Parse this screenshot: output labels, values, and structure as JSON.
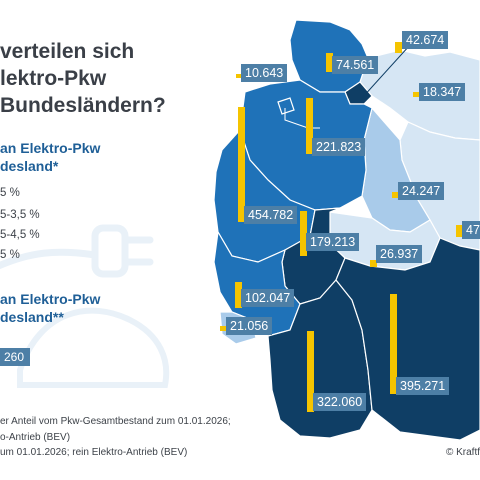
{
  "headline": {
    "line1": "verteilen sich",
    "line2": "lektro-Pkw",
    "line3": "Bundesländern?"
  },
  "legend": {
    "share_title_1": "an Elektro-Pkw",
    "share_title_2": "desland*",
    "share_items": [
      "5 %",
      "5-3,5 %",
      "5-4,5 %",
      "5 %"
    ],
    "count_title_1": "an Elektro-Pkw",
    "count_title_2": "desland**",
    "total_value": "260"
  },
  "footnotes": {
    "line1": "er Anteil vom Pkw-Gesamtbestand zum 01.01.2026;",
    "line2": "o-Antrieb (BEV)",
    "line3": "um 01.01.2026; rein Elektro-Antrieb (BEV)"
  },
  "credit": "© Kraftf",
  "colors": {
    "share_light": "#d6e6f4",
    "share_medium_light": "#a9cbea",
    "share_medium": "#1f72b8",
    "share_dark": "#0f3e65",
    "bar": "#f5c400",
    "label_bg": "#4d7fa6"
  },
  "states": [
    {
      "name": "schleswig-holstein",
      "value": "74.561",
      "bar_value": 74561,
      "share_class": "medium"
    },
    {
      "name": "hamburg",
      "value": "42.674",
      "bar_value": 42674,
      "share_class": "dark"
    },
    {
      "name": "bremen",
      "value": "10.643",
      "bar_value": 10643,
      "share_class": "medium"
    },
    {
      "name": "mecklenburg-vorpommern",
      "value": "18.347",
      "bar_value": 18347,
      "share_class": "light"
    },
    {
      "name": "niedersachsen",
      "value": "221.823",
      "bar_value": 221823,
      "share_class": "medium"
    },
    {
      "name": "nordrhein-westfalen",
      "value": "454.782",
      "bar_value": 454782,
      "share_class": "medium"
    },
    {
      "name": "sachsen-anhalt",
      "value": "24.247",
      "bar_value": 24247,
      "share_class": "light"
    },
    {
      "name": "brandenburg-berlin-partial",
      "value": "47",
      "bar_value": 47000,
      "share_class": "light"
    },
    {
      "name": "hessen",
      "value": "179.213",
      "bar_value": 179213,
      "share_class": "dark"
    },
    {
      "name": "thueringen",
      "value": "26.937",
      "bar_value": 26937,
      "share_class": "light"
    },
    {
      "name": "rheinland-pfalz",
      "value": "102.047",
      "bar_value": 102047,
      "share_class": "medium"
    },
    {
      "name": "saarland",
      "value": "21.056",
      "bar_value": 21056,
      "share_class": "medium_light"
    },
    {
      "name": "baden-wuerttemberg",
      "value": "322.060",
      "bar_value": 322060,
      "share_class": "dark"
    },
    {
      "name": "bayern",
      "value": "395.271",
      "bar_value": 395271,
      "share_class": "dark"
    }
  ]
}
